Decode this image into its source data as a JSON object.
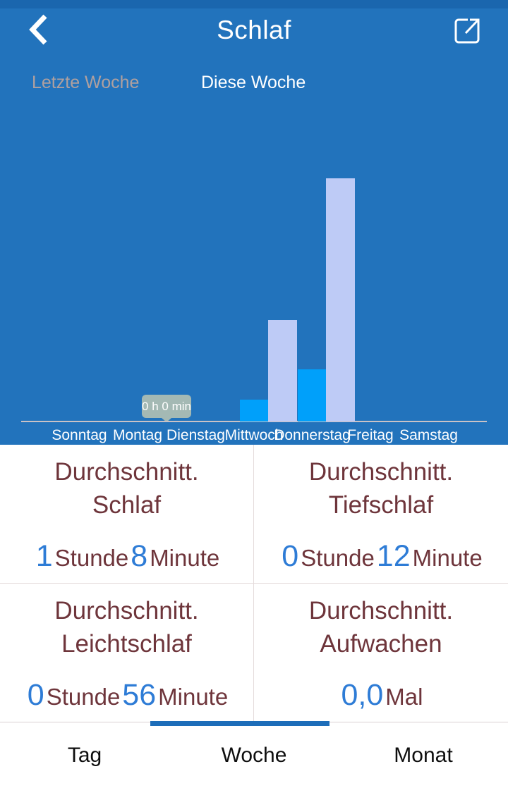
{
  "header": {
    "title": "Schlaf"
  },
  "period_tabs": {
    "inactive": "Letzte Woche",
    "active": "Diese Woche"
  },
  "chart_data": {
    "type": "bar",
    "categories": [
      "Sonntag",
      "Montag",
      "Dienstag",
      "Mittwoch",
      "Donnerstag",
      "Freitag",
      "Samstag"
    ],
    "series": [
      {
        "name": "Tiefschlaf",
        "color": "#00A0FA",
        "values_minutes": [
          0,
          0,
          0,
          7,
          17,
          0,
          0
        ]
      },
      {
        "name": "Leichtschlaf",
        "color": "#BECBF6",
        "values_minutes": [
          0,
          0,
          0,
          33,
          79,
          0,
          0
        ]
      }
    ],
    "unit": "minutes",
    "ylim_minutes": [
      0,
      80
    ],
    "grid": false,
    "legend": "none",
    "tooltip": {
      "text": "0 h 0 min",
      "category": "Dienstag"
    }
  },
  "stats": {
    "cards": [
      {
        "title": "Durchschnitt.",
        "subtitle": "Schlaf",
        "num1": "1",
        "unit1": "Stunde",
        "num2": "8",
        "unit2": "Minute"
      },
      {
        "title": "Durchschnitt.",
        "subtitle": "Tiefschlaf",
        "num1": "0",
        "unit1": "Stunde",
        "num2": "12",
        "unit2": "Minute"
      },
      {
        "title": "Durchschnitt.",
        "subtitle": "Leichtschlaf",
        "num1": "0",
        "unit1": "Stunde",
        "num2": "56",
        "unit2": "Minute"
      },
      {
        "title": "Durchschnitt.",
        "subtitle": "Aufwachen",
        "num1": "0,0",
        "unit1": "Mal",
        "num2": "",
        "unit2": ""
      }
    ]
  },
  "nav": {
    "items": [
      {
        "label": "Tag",
        "active": false
      },
      {
        "label": "Woche",
        "active": true
      },
      {
        "label": "Monat",
        "active": false
      }
    ]
  },
  "colors": {
    "app_bar_blue": "#2273BC",
    "status_strip_blue": "#1A66AE",
    "deep_sleep_bar": "#00A0FA",
    "light_sleep_bar": "#BECBF6",
    "value_number_blue": "#2E7CD6",
    "label_maroon": "#6E353B",
    "tab_indicator_blue": "#1D6DB9",
    "tooltip_bg": "#A4B9B4",
    "inactive_tab_text": "#AFA09F"
  }
}
